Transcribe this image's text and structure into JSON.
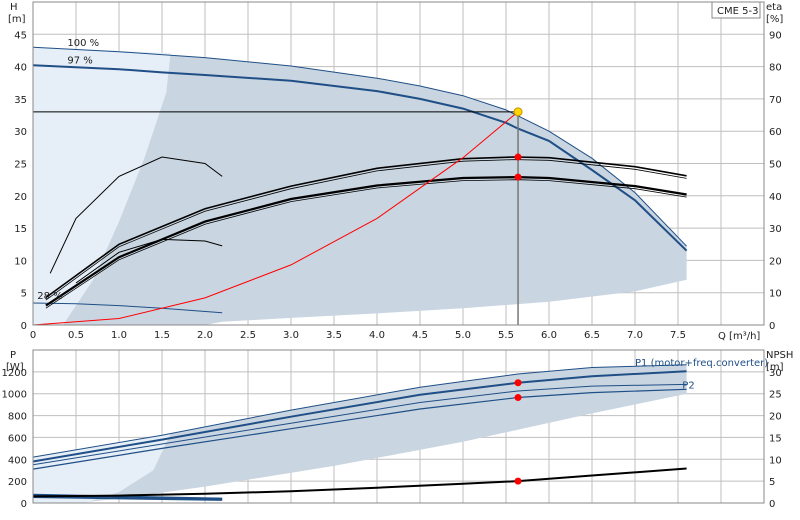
{
  "chart_data": [
    {
      "type": "line",
      "model_label": "CME 5-3",
      "y_left_label_top": "H",
      "y_left_label_unit": "[m]",
      "y_right_label_top": "eta",
      "y_right_label_unit": "[%]",
      "x_label": "Q [m³/h]",
      "xlim": [
        0,
        8.5
      ],
      "ylim_left": [
        0,
        50
      ],
      "ylim_right": [
        0,
        100
      ],
      "x_ticks": [
        "0",
        "0.5",
        "1.0",
        "1.5",
        "2.0",
        "2.5",
        "3.0",
        "3.5",
        "4.0",
        "4.5",
        "5.0",
        "5.5",
        "6.0",
        "6.5",
        "7.0",
        "7.5"
      ],
      "x_tick_values": [
        0,
        0.5,
        1.0,
        1.5,
        2.0,
        2.5,
        3.0,
        3.5,
        4.0,
        4.5,
        5.0,
        5.5,
        6.0,
        6.5,
        7.0,
        7.5
      ],
      "y_left_ticks": [
        0,
        5,
        10,
        15,
        20,
        25,
        30,
        35,
        40,
        45
      ],
      "y_right_ticks": [
        0,
        10,
        20,
        30,
        40,
        50,
        60,
        70,
        80,
        90
      ],
      "speed_labels": [
        {
          "text": "100 %",
          "x": 0.4,
          "y": 43.2
        },
        {
          "text": "97 %",
          "x": 0.4,
          "y": 40.5
        },
        {
          "text": "28 %",
          "x": 0.05,
          "y": 4.0
        }
      ],
      "series": [
        {
          "role": "head_100",
          "x": [
            0,
            1.0,
            2.0,
            3.0,
            4.0,
            4.5,
            5.0,
            5.5,
            6.0,
            6.5,
            7.0,
            7.6
          ],
          "y": [
            43.0,
            42.3,
            41.4,
            40.1,
            38.2,
            37.0,
            35.5,
            33.3,
            30.0,
            25.8,
            20.5,
            12.2
          ]
        },
        {
          "role": "head_97",
          "x": [
            0,
            1.0,
            1.5,
            2.0,
            3.0,
            4.0,
            4.5,
            5.0,
            5.5,
            5.64,
            6.0,
            6.5,
            7.0,
            7.6
          ],
          "y": [
            40.2,
            39.6,
            39.1,
            38.7,
            37.8,
            36.2,
            35.0,
            33.5,
            31.3,
            30.4,
            28.5,
            24.0,
            19.3,
            11.5
          ]
        },
        {
          "role": "head_28",
          "x": [
            0,
            0.5,
            1.0,
            1.5,
            2.2
          ],
          "y": [
            3.4,
            3.3,
            3.0,
            2.6,
            1.9
          ]
        },
        {
          "role": "eta_100",
          "x": [
            0.15,
            1.0,
            2.0,
            3.0,
            4.0,
            5.0,
            5.6,
            6.0,
            7.0,
            7.6
          ],
          "y": [
            8.5,
            25.0,
            36.0,
            43.0,
            48.5,
            51.5,
            52.0,
            51.8,
            49.0,
            46.2
          ]
        },
        {
          "role": "eta_97",
          "x": [
            0.15,
            1.0,
            2.0,
            3.0,
            4.0,
            5.0,
            5.64,
            6.0,
            7.0,
            7.6
          ],
          "y": [
            6.0,
            21.0,
            32.0,
            39.0,
            43.2,
            45.5,
            45.8,
            45.5,
            43.0,
            40.4
          ]
        },
        {
          "role": "eta_low_a",
          "x": [
            0.2,
            0.5,
            1.0,
            1.5,
            2.0,
            2.2
          ],
          "y": [
            16.0,
            33.0,
            46.0,
            52.0,
            50.0,
            46.0
          ]
        },
        {
          "role": "eta_low_b",
          "x": [
            0.5,
            1.0,
            1.5,
            2.0,
            2.2
          ],
          "y": [
            13.0,
            22.5,
            26.5,
            26.0,
            24.5
          ]
        },
        {
          "role": "system_curve",
          "x": [
            0,
            1.0,
            2.0,
            3.0,
            4.0,
            5.0,
            5.64
          ],
          "y": [
            0,
            1.0,
            4.2,
            9.3,
            16.5,
            25.9,
            33.0
          ]
        }
      ],
      "operating_point": {
        "q": 5.64,
        "h": 33.0
      },
      "eta_points": [
        {
          "q": 5.64,
          "eta": 52.0
        },
        {
          "q": 5.64,
          "eta": 45.8
        }
      ]
    },
    {
      "type": "line",
      "y_left_label_top": "P",
      "y_left_label_unit": "[W]",
      "y_right_label_top": "NPSH",
      "y_right_label_unit": "[m]",
      "xlim": [
        0,
        8.5
      ],
      "ylim_left": [
        0,
        1400
      ],
      "ylim_right": [
        0,
        35
      ],
      "y_left_ticks": [
        0,
        200,
        400,
        600,
        800,
        1000,
        1200
      ],
      "y_right_ticks": [
        0,
        5,
        10,
        15,
        20,
        25,
        30
      ],
      "power_labels": [
        {
          "text": "P1 (motor+freq.converter)",
          "x": 7.0,
          "y": 1255
        },
        {
          "text": "P2",
          "x": 7.55,
          "y": 1050
        }
      ],
      "series": [
        {
          "role": "p1_100",
          "x": [
            0,
            1.5,
            3.0,
            4.5,
            5.64,
            6.5,
            7.6
          ],
          "y": [
            420,
            620,
            850,
            1060,
            1180,
            1240,
            1265
          ]
        },
        {
          "role": "p1_97",
          "x": [
            0,
            1.5,
            3.0,
            4.5,
            5.64,
            6.5,
            7.6
          ],
          "y": [
            380,
            580,
            790,
            990,
            1100,
            1160,
            1205
          ]
        },
        {
          "role": "p2_100",
          "x": [
            0,
            1.5,
            3.0,
            4.5,
            5.64,
            6.5,
            7.6
          ],
          "y": [
            350,
            540,
            730,
            920,
            1025,
            1070,
            1085
          ]
        },
        {
          "role": "p2_97",
          "x": [
            0,
            1.5,
            3.0,
            4.5,
            5.64,
            6.5,
            7.6
          ],
          "y": [
            310,
            500,
            680,
            860,
            965,
            1010,
            1040
          ]
        },
        {
          "role": "low_a",
          "x": [
            0,
            2.2
          ],
          "y": [
            75,
            40
          ]
        },
        {
          "role": "low_b",
          "x": [
            0,
            2.2
          ],
          "y": [
            55,
            28
          ]
        },
        {
          "role": "npsh",
          "x": [
            0,
            1.0,
            2.0,
            3.0,
            4.0,
            5.0,
            5.64,
            6.5,
            7.6
          ],
          "y": [
            1.5,
            1.7,
            2.1,
            2.7,
            3.5,
            4.4,
            5.0,
            6.3,
            7.9
          ]
        }
      ],
      "power_points": [
        {
          "q": 5.64,
          "p": 1100
        },
        {
          "q": 5.64,
          "p": 965
        }
      ],
      "npsh_point": {
        "q": 5.64,
        "npsh": 5.0
      }
    }
  ],
  "colors": {
    "envelope": "#c9d5e1",
    "envelope_light": "#e6eef7",
    "curve_blue": "#1f4f86",
    "curve_black": "#000000",
    "system": "#ff0000",
    "op_point": "#ffd700",
    "marker_red": "#ff0000"
  }
}
